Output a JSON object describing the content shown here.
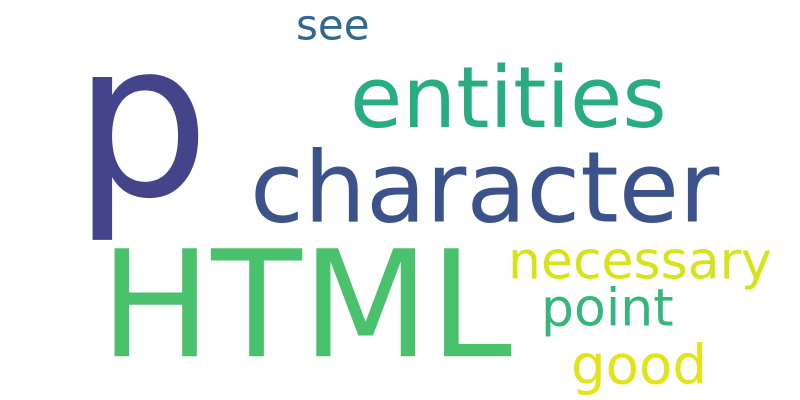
{
  "words": [
    {
      "id": "p",
      "text": "p",
      "color": "#44448a"
    },
    {
      "id": "entities",
      "text": "entities",
      "color": "#27ad81"
    },
    {
      "id": "character",
      "text": "character",
      "color": "#3b528b"
    },
    {
      "id": "html",
      "text": "HTML",
      "color": "#4ac16d"
    },
    {
      "id": "see",
      "text": "see",
      "color": "#31688e"
    },
    {
      "id": "necessary",
      "text": "necessary",
      "color": "#d8e219"
    },
    {
      "id": "point",
      "text": "point",
      "color": "#35b779"
    },
    {
      "id": "good",
      "text": "good",
      "color": "#e2e418"
    }
  ]
}
